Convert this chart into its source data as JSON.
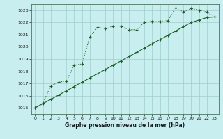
{
  "title": "Graphe pression niveau de la mer (hPa)",
  "bg_color": "#c8eef0",
  "grid_color": "#9ecfcc",
  "line_color": "#1a5e20",
  "xlim": [
    -0.5,
    23.5
  ],
  "ylim": [
    1014.5,
    1023.5
  ],
  "yticks": [
    1015,
    1016,
    1017,
    1018,
    1019,
    1020,
    1021,
    1022,
    1023
  ],
  "xticks": [
    0,
    1,
    2,
    3,
    4,
    5,
    6,
    7,
    8,
    9,
    10,
    11,
    12,
    13,
    14,
    15,
    16,
    17,
    18,
    19,
    20,
    21,
    22,
    23
  ],
  "line1_x": [
    0,
    1,
    2,
    3,
    4,
    5,
    6,
    7,
    8,
    9,
    10,
    11,
    12,
    13,
    14,
    15,
    16,
    17,
    18,
    19,
    20,
    21,
    22,
    23
  ],
  "line1_y": [
    1015.0,
    1015.4,
    1016.8,
    1017.1,
    1017.2,
    1018.5,
    1018.6,
    1020.8,
    1021.6,
    1021.5,
    1021.7,
    1021.7,
    1021.4,
    1021.4,
    1022.0,
    1022.1,
    1022.1,
    1022.15,
    1023.2,
    1022.85,
    1023.15,
    1023.0,
    1022.85,
    1022.45
  ],
  "line2_x": [
    0,
    1,
    2,
    3,
    4,
    5,
    6,
    7,
    8,
    9,
    10,
    11,
    12,
    13,
    14,
    15,
    16,
    17,
    18,
    19,
    20,
    21,
    22,
    23
  ],
  "line2_y": [
    1015.0,
    1015.35,
    1015.7,
    1016.05,
    1016.4,
    1016.75,
    1017.1,
    1017.45,
    1017.8,
    1018.15,
    1018.5,
    1018.85,
    1019.2,
    1019.55,
    1019.9,
    1020.25,
    1020.6,
    1020.95,
    1021.3,
    1021.65,
    1022.0,
    1022.2,
    1022.4,
    1022.45
  ]
}
